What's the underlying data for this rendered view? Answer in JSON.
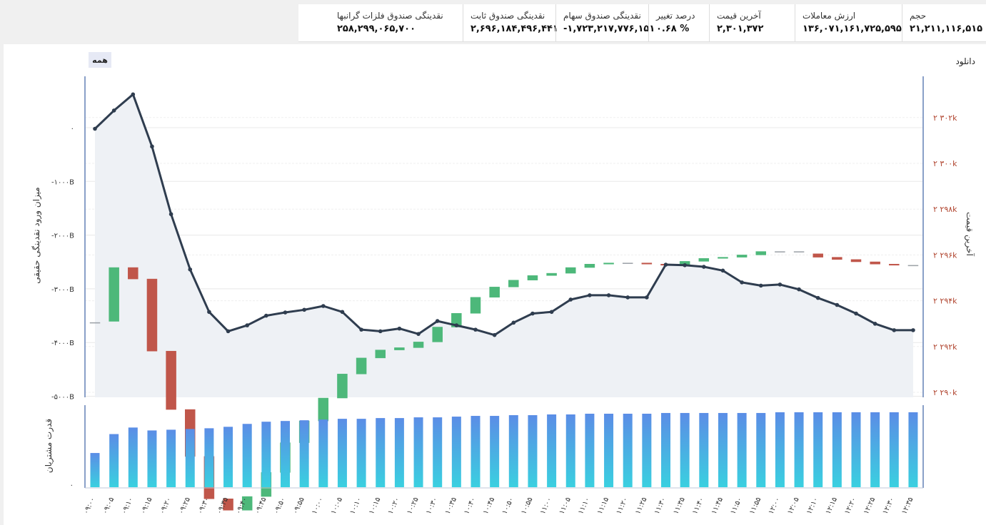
{
  "stats": [
    {
      "label": "حجم",
      "value": "۲۱,۲۱۱,۱۱۶,۵۱۵"
    },
    {
      "label": "ارزش معاملات",
      "value": "۱۳۶,۰۷۱,۱۶۱,۷۲۵,۵۹۵"
    },
    {
      "label": "آخرین قیمت",
      "value": "۲,۳۰۱,۳۷۲"
    },
    {
      "label": "درصد تغییر",
      "value": "۰.۶۸ %"
    },
    {
      "label": "نقدینگی صندوق سهام",
      "value": "-۱,۷۲۳,۲۱۷,۷۷۶,۱۵۱"
    },
    {
      "label": "نقدینگی صندوق ثابت",
      "value": "۲,۶۹۶,۱۸۴,۴۹۶,۴۴۱"
    },
    {
      "label": "نقدینگی صندوق فلزات گرانبها",
      "value": "۲۵۸,۲۹۹,۰۶۵,۷۰۰"
    }
  ],
  "controls": {
    "all_button": "همه",
    "download": "دانلود"
  },
  "chart_data": {
    "type": "line",
    "x": [
      "۰۹:۰۰",
      "۰۹:۰۵",
      "۰۹:۱۰",
      "۰۹:۱۵",
      "۰۹:۲۰",
      "۰۹:۲۵",
      "۰۹:۳۰",
      "۰۹:۳۵",
      "۰۹:۴۰",
      "۰۹:۴۵",
      "۰۹:۵۰",
      "۰۹:۵۵",
      "۱۰:۰۰",
      "۱۰:۰۵",
      "۱۰:۱۰",
      "۱۰:۱۵",
      "۱۰:۲۰",
      "۱۰:۲۵",
      "۱۰:۳۰",
      "۱۰:۳۵",
      "۱۰:۴۰",
      "۱۰:۴۵",
      "۱۰:۵۰",
      "۱۰:۵۵",
      "۱۱:۰۰",
      "۱۱:۰۵",
      "۱۱:۱۰",
      "۱۱:۱۵",
      "۱۱:۲۰",
      "۱۱:۲۵",
      "۱۱:۳۰",
      "۱۱:۳۵",
      "۱۱:۴۰",
      "۱۱:۴۵",
      "۱۱:۵۰",
      "۱۱:۵۵",
      "۱۲:۰۰",
      "۱۲:۰۵",
      "۱۲:۱۰",
      "۱۲:۱۵",
      "۱۲:۲۰",
      "۱۲:۲۵",
      "۱۲:۳۰",
      "۱۲:۳۵"
    ],
    "left_axis": {
      "label": "میزان ورود نقدینگی حقیقی",
      "ticks": [
        "۰",
        "-۱۰۰۰B",
        "-۲۰۰۰B",
        "-۳۰۰۰B",
        "-۴۰۰۰B",
        "-۵۰۰۰B"
      ],
      "tick_values": [
        0,
        -1000,
        -2000,
        -3000,
        -4000,
        -5000
      ],
      "ylim": [
        -5000,
        1000
      ]
    },
    "right_axis": {
      "label": "آخرین قیمت",
      "ticks": [
        "۲ ۳۰۲k",
        "۲ ۳۰۰k",
        "۲ ۲۹۸k",
        "۲ ۲۹۶k",
        "۲ ۲۹۴k",
        "۲ ۲۹۲k",
        "۲ ۲۹۰k"
      ],
      "tick_values": [
        2302,
        2300,
        2298,
        2296,
        2294,
        2292,
        2290
      ],
      "ylim": [
        2290,
        2302.5
      ]
    },
    "series": [
      {
        "type": "line",
        "axis": "left",
        "values": [
          -20,
          320,
          620,
          -350,
          -1610,
          -2640,
          -3430,
          -3790,
          -3680,
          -3500,
          -3440,
          -3390,
          -3320,
          -3430,
          -3760,
          -3790,
          -3740,
          -3840,
          -3600,
          -3680,
          -3760,
          -3860,
          -3630,
          -3460,
          -3430,
          -3200,
          -3120,
          -3120,
          -3160,
          -3160,
          -2550,
          -2560,
          -2590,
          -2660,
          -2880,
          -2940,
          -2920,
          -3010,
          -3170,
          -3300,
          -3460,
          -3650,
          -3770,
          -3770
        ]
      },
      {
        "type": "candlestick",
        "axis": "right",
        "up_color": "#4db87a",
        "down_color": "#c0564a",
        "candles": [
          {
            "open": 2293.05,
            "close": 2293.05
          },
          {
            "open": 2293.1,
            "close": 2295.45
          },
          {
            "open": 2295.45,
            "close": 2294.95
          },
          {
            "open": 2294.95,
            "close": 2291.8
          },
          {
            "open": 2291.8,
            "close": 2289.25
          },
          {
            "open": 2289.25,
            "close": 2287.2
          },
          {
            "open": 2287.2,
            "close": 2285.35
          },
          {
            "open": 2285.35,
            "close": 2284.85
          },
          {
            "open": 2284.85,
            "close": 2285.45
          },
          {
            "open": 2285.45,
            "close": 2286.5
          },
          {
            "open": 2286.5,
            "close": 2287.8
          },
          {
            "open": 2287.8,
            "close": 2288.75
          },
          {
            "open": 2288.75,
            "close": 2289.75
          },
          {
            "open": 2289.75,
            "close": 2290.8
          },
          {
            "open": 2290.8,
            "close": 2291.5
          },
          {
            "open": 2291.5,
            "close": 2291.85
          },
          {
            "open": 2291.85,
            "close": 2291.95
          },
          {
            "open": 2291.95,
            "close": 2292.2
          },
          {
            "open": 2292.2,
            "close": 2292.85
          },
          {
            "open": 2292.85,
            "close": 2293.45
          },
          {
            "open": 2293.45,
            "close": 2294.15
          },
          {
            "open": 2294.15,
            "close": 2294.6
          },
          {
            "open": 2294.6,
            "close": 2294.9
          },
          {
            "open": 2294.9,
            "close": 2295.1
          },
          {
            "open": 2295.1,
            "close": 2295.2
          },
          {
            "open": 2295.2,
            "close": 2295.45
          },
          {
            "open": 2295.45,
            "close": 2295.6
          },
          {
            "open": 2295.6,
            "close": 2295.65
          },
          {
            "open": 2295.65,
            "close": 2295.65
          },
          {
            "open": 2295.65,
            "close": 2295.6
          },
          {
            "open": 2295.6,
            "close": 2295.55
          },
          {
            "open": 2295.55,
            "close": 2295.72
          },
          {
            "open": 2295.72,
            "close": 2295.85
          },
          {
            "open": 2295.85,
            "close": 2295.9
          },
          {
            "open": 2295.9,
            "close": 2296.0
          },
          {
            "open": 2296.0,
            "close": 2296.15
          },
          {
            "open": 2296.15,
            "close": 2296.15
          },
          {
            "open": 2296.15,
            "close": 2296.15
          },
          {
            "open": 2296.05,
            "close": 2295.9
          },
          {
            "open": 2295.9,
            "close": 2295.8
          },
          {
            "open": 2295.8,
            "close": 2295.7
          },
          {
            "open": 2295.7,
            "close": 2295.6
          },
          {
            "open": 2295.6,
            "close": 2295.55
          },
          {
            "open": 2295.55,
            "close": 2295.55
          }
        ]
      }
    ],
    "bottom_panel": {
      "label": "قدرت مشتریان",
      "ticks": [
        "۰"
      ],
      "type": "bar",
      "values": [
        0.47,
        0.73,
        0.82,
        0.78,
        0.79,
        0.8,
        0.81,
        0.83,
        0.87,
        0.9,
        0.91,
        0.92,
        0.93,
        0.94,
        0.94,
        0.95,
        0.95,
        0.96,
        0.96,
        0.97,
        0.98,
        0.98,
        0.99,
        0.99,
        1.0,
        1.0,
        1.01,
        1.01,
        1.01,
        1.01,
        1.02,
        1.02,
        1.02,
        1.02,
        1.02,
        1.02,
        1.03,
        1.03,
        1.03,
        1.03,
        1.03,
        1.03,
        1.03,
        1.03
      ],
      "gradient": [
        "#5b8de6",
        "#3ad0e0"
      ]
    },
    "grid": true
  }
}
